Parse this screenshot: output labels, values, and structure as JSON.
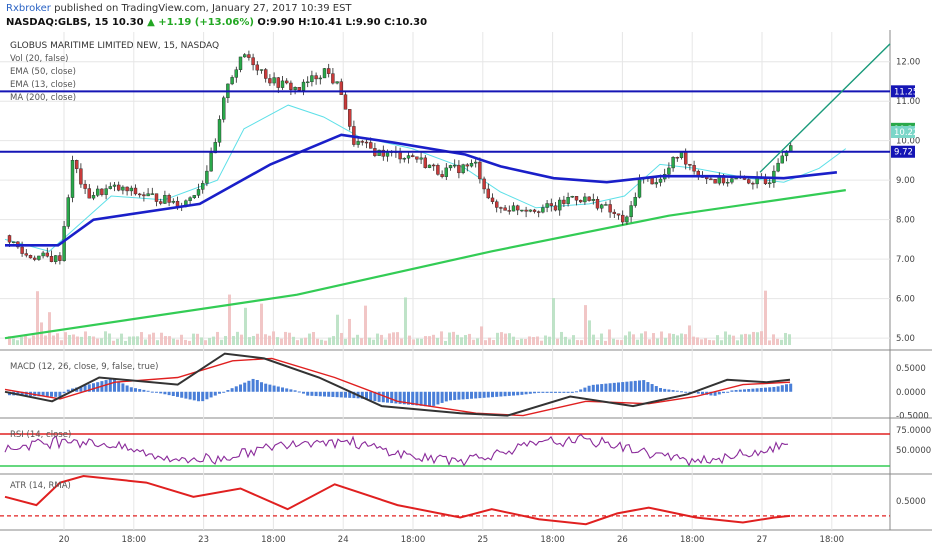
{
  "header": {
    "author": "Rxbroker",
    "published": "published on TradingView.com, January 27, 2017 10:39 EST",
    "symbol": "NASDAQ:GLBS, 15",
    "last": "10.30",
    "change": "▲ +1.19 (+13.06%)",
    "ohlc": "O:9.90 H:10.41 L:9.90 C:10.30"
  },
  "colors": {
    "ema50": "#1a1fc9",
    "ema13": "#5ee0e8",
    "ma200": "#33cc55",
    "macd": "#333333",
    "signal": "#e02020",
    "rsi": "#8a2a9a",
    "atr": "#e02020",
    "level": "#1515b5",
    "trend": "#1a9a7a",
    "up": "#2aa84a",
    "down": "#c83a3a"
  },
  "chart_data": [
    {
      "type": "candlestick",
      "title": "GLOBUS MARITIME LIMITED NEW, 15, NASDAQ",
      "legend": [
        "Vol (20, false)",
        "EMA (50, close)",
        "EMA (13, close)",
        "MA (200, close)"
      ],
      "ylim": [
        4.7,
        12.6
      ],
      "yticks": [
        "12.00",
        "11.00",
        "10.00",
        "9.00",
        "8.00",
        "7.00",
        "6.00",
        "5.00"
      ],
      "price_labels": {
        "resistance": "11.25",
        "last": "10.30",
        "ema": "10.22",
        "support": "9.72"
      },
      "horizontal_levels": [
        11.25,
        9.72
      ],
      "ma200": {
        "start": 5.0,
        "end": 8.75
      },
      "ema50_path": [
        [
          0,
          7.35
        ],
        [
          0.06,
          7.35
        ],
        [
          0.1,
          8.0
        ],
        [
          0.22,
          8.4
        ],
        [
          0.3,
          9.4
        ],
        [
          0.38,
          10.15
        ],
        [
          0.44,
          9.95
        ],
        [
          0.52,
          9.65
        ],
        [
          0.56,
          9.35
        ],
        [
          0.62,
          9.05
        ],
        [
          0.68,
          8.95
        ],
        [
          0.74,
          9.1
        ],
        [
          0.8,
          9.1
        ],
        [
          0.88,
          9.05
        ],
        [
          0.94,
          9.2
        ]
      ],
      "volume_note": "Vol (20, false)"
    },
    {
      "type": "line",
      "title": "MACD (12, 26, close, 9, false, true)",
      "ylim": [
        -0.55,
        0.75
      ],
      "yticks": [
        "0.5000",
        "0.0000",
        "-0.5000"
      ],
      "macd_path": [
        [
          0,
          0
        ],
        [
          0.06,
          -0.2
        ],
        [
          0.12,
          0.3
        ],
        [
          0.22,
          0.15
        ],
        [
          0.28,
          0.8
        ],
        [
          0.33,
          0.7
        ],
        [
          0.4,
          0.3
        ],
        [
          0.48,
          -0.3
        ],
        [
          0.58,
          -0.45
        ],
        [
          0.64,
          -0.5
        ],
        [
          0.72,
          -0.1
        ],
        [
          0.8,
          -0.3
        ],
        [
          0.87,
          -0.05
        ],
        [
          0.92,
          0.25
        ],
        [
          0.97,
          0.2
        ],
        [
          1,
          0.25
        ]
      ],
      "signal_path": [
        [
          0,
          0.05
        ],
        [
          0.07,
          -0.15
        ],
        [
          0.14,
          0.2
        ],
        [
          0.22,
          0.3
        ],
        [
          0.29,
          0.65
        ],
        [
          0.34,
          0.7
        ],
        [
          0.42,
          0.3
        ],
        [
          0.5,
          -0.2
        ],
        [
          0.6,
          -0.45
        ],
        [
          0.66,
          -0.5
        ],
        [
          0.74,
          -0.2
        ],
        [
          0.82,
          -0.25
        ],
        [
          0.88,
          -0.1
        ],
        [
          0.94,
          0.15
        ],
        [
          1,
          0.2
        ]
      ]
    },
    {
      "type": "line",
      "title": "RSI (14, close)",
      "ylim": [
        20,
        85
      ],
      "yticks": [
        "75.0000",
        "50.0000"
      ],
      "bands": [
        70,
        30
      ],
      "last": 72
    },
    {
      "type": "line",
      "title": "ATR (14, RMA)",
      "ylim": [
        0.15,
        0.8
      ],
      "yticks": [
        "0.5000"
      ],
      "reference": 0.32,
      "path": [
        [
          0,
          0.55
        ],
        [
          0.04,
          0.45
        ],
        [
          0.07,
          0.72
        ],
        [
          0.1,
          0.8
        ],
        [
          0.18,
          0.72
        ],
        [
          0.24,
          0.55
        ],
        [
          0.3,
          0.65
        ],
        [
          0.36,
          0.4
        ],
        [
          0.42,
          0.7
        ],
        [
          0.5,
          0.45
        ],
        [
          0.58,
          0.3
        ],
        [
          0.62,
          0.4
        ],
        [
          0.68,
          0.28
        ],
        [
          0.74,
          0.22
        ],
        [
          0.78,
          0.35
        ],
        [
          0.82,
          0.42
        ],
        [
          0.88,
          0.3
        ],
        [
          0.94,
          0.24
        ],
        [
          0.98,
          0.3
        ],
        [
          1,
          0.32
        ]
      ]
    }
  ],
  "xaxis": {
    "ticks": [
      "20",
      "18:00",
      "23",
      "18:00",
      "24",
      "18:00",
      "25",
      "18:00",
      "26",
      "18:00",
      "27",
      "18:00"
    ]
  }
}
